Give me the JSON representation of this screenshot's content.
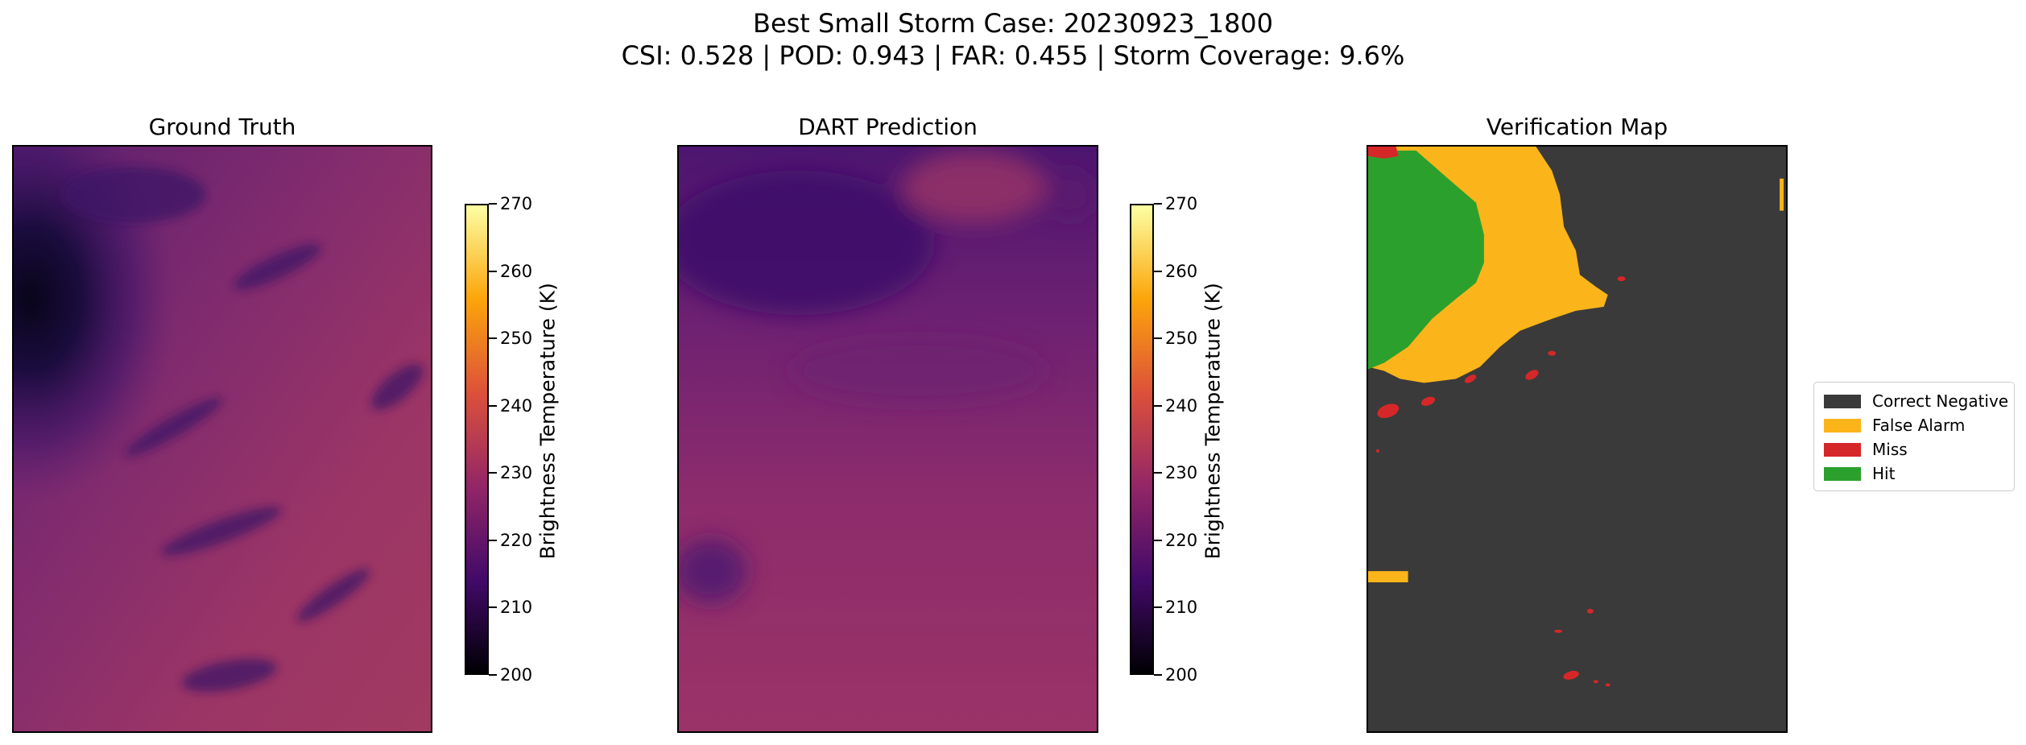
{
  "chart_data": {
    "title_line1": "Best Small Storm Case: 20230923_1800",
    "title_line2": "CSI: 0.528 | POD: 0.943 | FAR: 0.455 | Storm Coverage: 9.6%",
    "case_id": "20230923_1800",
    "metrics": {
      "CSI": 0.528,
      "POD": 0.943,
      "FAR": 0.455,
      "storm_coverage_pct": 9.6
    },
    "panels": [
      {
        "type": "heatmap",
        "title": "Ground Truth",
        "colormap": "inferno",
        "colorbar": {
          "label": "Brightness Temperature (K)",
          "range": [
            200,
            270
          ],
          "ticks": [
            "200",
            "210",
            "220",
            "230",
            "240",
            "250",
            "260",
            "270"
          ]
        }
      },
      {
        "type": "heatmap",
        "title": "DART Prediction",
        "colormap": "inferno",
        "colorbar": {
          "label": "Brightness Temperature (K)",
          "range": [
            200,
            270
          ],
          "ticks": [
            "200",
            "210",
            "220",
            "230",
            "240",
            "250",
            "260",
            "270"
          ]
        }
      },
      {
        "type": "heatmap",
        "title": "Verification Map",
        "legend": [
          {
            "label": "Correct Negative",
            "color": "#3a3a3a"
          },
          {
            "label": "False Alarm",
            "color": "#fbb41a"
          },
          {
            "label": "Miss",
            "color": "#d62728"
          },
          {
            "label": "Hit",
            "color": "#2ca02c"
          }
        ]
      }
    ]
  }
}
